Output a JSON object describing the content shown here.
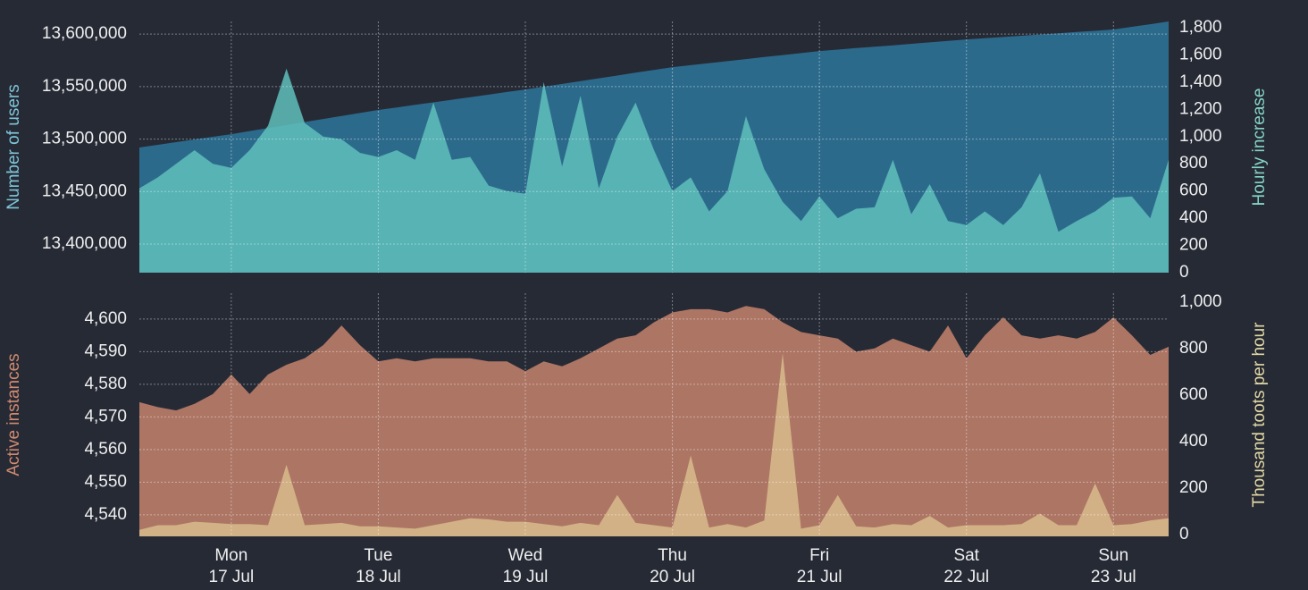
{
  "chart_data": [
    {
      "type": "area",
      "ylabel": "Number of users",
      "y2label": "Hourly increase",
      "xlim": [
        0,
        56
      ],
      "xticks": [
        5,
        13,
        21,
        29,
        37,
        45,
        53
      ],
      "ylim": [
        13372800,
        13612000
      ],
      "yticks": [
        {
          "value": 13400000,
          "label": "13,400,000"
        },
        {
          "value": 13450000,
          "label": "13,450,000"
        },
        {
          "value": 13500000,
          "label": "13,500,000"
        },
        {
          "value": 13550000,
          "label": "13,550,000"
        },
        {
          "value": 13600000,
          "label": "13,600,000"
        }
      ],
      "y2lim": [
        0,
        1846
      ],
      "y2ticks": [
        0,
        200,
        400,
        600,
        800,
        {
          "value": 1000,
          "label": "1,000"
        },
        {
          "value": 1200,
          "label": "1,200"
        },
        {
          "value": 1400,
          "label": "1,400"
        },
        {
          "value": 1600,
          "label": "1,600"
        },
        {
          "value": 1800,
          "label": "1,800"
        }
      ],
      "ylabel_color": "#7ec4d8",
      "y2label_color": "#84d4c4",
      "grid": true,
      "series": [
        {
          "color": "#2c6a8c",
          "opacity": 1,
          "axis": "y",
          "values": [
            13492000,
            13494500,
            13497100,
            13499600,
            13502200,
            13504700,
            13507600,
            13510500,
            13513300,
            13516200,
            13519100,
            13522000,
            13524800,
            13527700,
            13530100,
            13532600,
            13535000,
            13537400,
            13539900,
            13542300,
            13544800,
            13547200,
            13549900,
            13552500,
            13555200,
            13557900,
            13560500,
            13563200,
            13565800,
            13568500,
            13570400,
            13572300,
            13574200,
            13576200,
            13578100,
            13580000,
            13581900,
            13583800,
            13585200,
            13586600,
            13588000,
            13589300,
            13590700,
            13592100,
            13593500,
            13594900,
            13596100,
            13597200,
            13598400,
            13599600,
            13600800,
            13602000,
            13603100,
            13604300,
            13606900,
            13609400,
            13612000
          ]
        },
        {
          "color": "#5fbfbb",
          "opacity": 0.85,
          "axis": "y2",
          "values": [
            620,
            700,
            800,
            900,
            800,
            770,
            900,
            1080,
            1500,
            1100,
            1000,
            980,
            880,
            850,
            900,
            830,
            1250,
            830,
            850,
            640,
            600,
            580,
            1400,
            780,
            1300,
            620,
            1000,
            1250,
            900,
            600,
            700,
            450,
            600,
            1150,
            760,
            520,
            380,
            560,
            400,
            470,
            480,
            830,
            430,
            650,
            380,
            350,
            450,
            350,
            480,
            730,
            300,
            380,
            450,
            550,
            560,
            400,
            830
          ]
        }
      ]
    },
    {
      "type": "area",
      "ylabel": "Active instances",
      "y2label": "Thousand toots per hour",
      "xlim": [
        0,
        56
      ],
      "xticks": [
        {
          "value": 5,
          "label": "Mon",
          "sublabel": "17 Jul"
        },
        {
          "value": 13,
          "label": "Tue",
          "sublabel": "18 Jul"
        },
        {
          "value": 21,
          "label": "Wed",
          "sublabel": "19 Jul"
        },
        {
          "value": 29,
          "label": "Thu",
          "sublabel": "20 Jul"
        },
        {
          "value": 37,
          "label": "Fri",
          "sublabel": "21 Jul"
        },
        {
          "value": 45,
          "label": "Sat",
          "sublabel": "22 Jul"
        },
        {
          "value": 53,
          "label": "Sun",
          "sublabel": "23 Jul"
        }
      ],
      "ylim": [
        4533.4,
        4607.9
      ],
      "yticks": [
        {
          "value": 4540,
          "label": "4,540"
        },
        {
          "value": 4550,
          "label": "4,550"
        },
        {
          "value": 4560,
          "label": "4,560"
        },
        {
          "value": 4570,
          "label": "4,570"
        },
        {
          "value": 4580,
          "label": "4,580"
        },
        {
          "value": 4590,
          "label": "4,590"
        },
        {
          "value": 4600,
          "label": "4,600"
        }
      ],
      "y2lim": [
        -8,
        1038
      ],
      "y2ticks": [
        0,
        200,
        400,
        600,
        800,
        {
          "value": 1000,
          "label": "1,000"
        }
      ],
      "ylabel_color": "#d08a70",
      "y2label_color": "#e2d8a4",
      "grid": true,
      "series": [
        {
          "color": "#ad7564",
          "opacity": 1,
          "axis": "y",
          "values": [
            4574.5,
            4573,
            4572,
            4574,
            4577,
            4583,
            4577,
            4583,
            4586,
            4588,
            4592,
            4598,
            4592,
            4587,
            4588,
            4587,
            4588,
            4588,
            4588,
            4587,
            4587,
            4584,
            4587,
            4585.5,
            4588,
            4591,
            4594,
            4595,
            4599,
            4602,
            4603,
            4603,
            4602,
            4604,
            4603,
            4599,
            4596,
            4595,
            4594,
            4590,
            4591,
            4594,
            4592,
            4590,
            4598,
            4588,
            4595,
            4600.5,
            4595,
            4594,
            4595,
            4594,
            4596,
            4600.5,
            4595,
            4589,
            4591.5
          ]
        },
        {
          "color": "#d9bc8c",
          "opacity": 0.85,
          "axis": "y2",
          "values": [
            20,
            40,
            40,
            55,
            50,
            45,
            45,
            40,
            300,
            40,
            45,
            50,
            35,
            35,
            30,
            25,
            40,
            55,
            70,
            65,
            55,
            55,
            45,
            35,
            50,
            40,
            170,
            50,
            40,
            30,
            340,
            30,
            45,
            30,
            60,
            780,
            25,
            40,
            170,
            35,
            30,
            45,
            40,
            80,
            30,
            40,
            40,
            40,
            45,
            90,
            40,
            40,
            220,
            40,
            45,
            60,
            70
          ]
        }
      ]
    }
  ]
}
